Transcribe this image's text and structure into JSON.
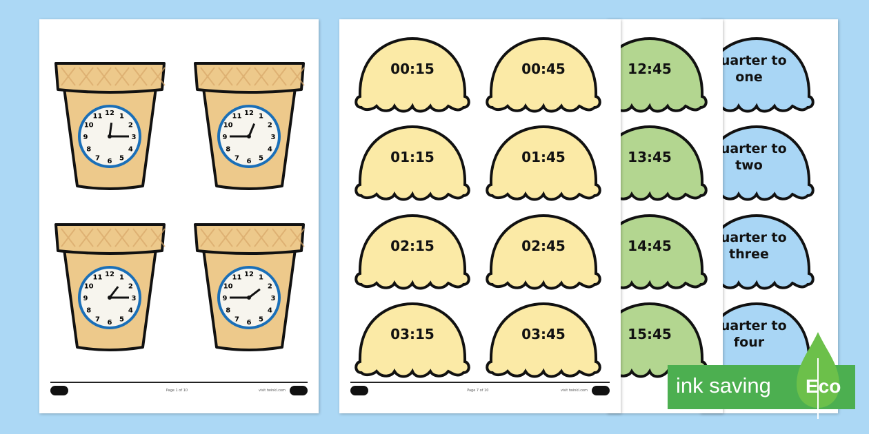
{
  "colors": {
    "background": "#acd8f5",
    "yellow_scoop": "#fbeaa6",
    "green_scoop": "#b3d690",
    "blue_scoop": "#a9d6f5",
    "cone": "#edc98b",
    "eco": "#4caf50"
  },
  "clock_page": {
    "clocks": [
      {
        "hour": 12,
        "minute": 15
      },
      {
        "hour": 12,
        "minute": 45
      },
      {
        "hour": 1,
        "minute": 15
      },
      {
        "hour": 1,
        "minute": 45
      }
    ],
    "footer": {
      "page": "Page 1 of 10",
      "site": "visit twinkl.com"
    }
  },
  "digital_page": {
    "cards": [
      "00:15",
      "00:45",
      "01:15",
      "01:45",
      "02:15",
      "02:45",
      "03:15",
      "03:45"
    ],
    "footer": {
      "page": "Page 7 of 10",
      "site": "visit twinkl.com"
    }
  },
  "green_page": {
    "cards": [
      "12:45",
      "13:45",
      "14:45",
      "15:45"
    ]
  },
  "blue_page": {
    "cards": [
      "quarter to one",
      "quarter to two",
      "quarter to three",
      "quarter to four"
    ]
  },
  "badge": {
    "text": "ink saving",
    "eco": "Eco",
    "icon": "leaf-icon"
  }
}
